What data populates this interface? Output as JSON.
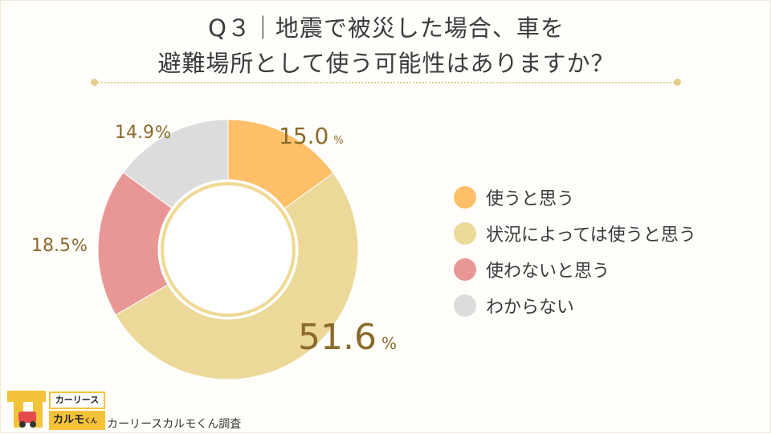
{
  "title_lines": [
    "Q３｜地震で被災した場合、車を",
    "避難場所として使う可能性はありますか？"
  ],
  "colors": {
    "background": "#fffefb",
    "inner_ring": "#efd993",
    "text_label": "#8a6a2a"
  },
  "chart_data": {
    "type": "pie",
    "variant": "donut",
    "categories": [
      "使うと思う",
      "状況によっては使うと思う",
      "使わないと思う",
      "わからない"
    ],
    "values": [
      15.0,
      51.6,
      18.5,
      14.9
    ],
    "value_labels": [
      "15.0",
      "51.6",
      "18.5",
      "14.9"
    ],
    "unit": "%",
    "colors": [
      "#ffbf69",
      "#ecd898",
      "#e89795",
      "#dcdcdc"
    ],
    "legend_placement": "right"
  },
  "logo": {
    "line1": "カーリース",
    "line2_main": "カルモ",
    "line2_small": "くん"
  },
  "source_note": "カーリースカルモくん調査"
}
